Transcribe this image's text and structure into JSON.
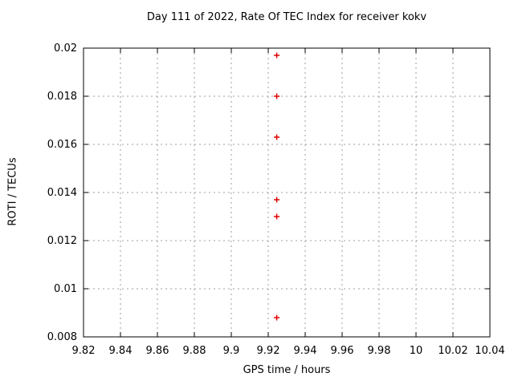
{
  "chart_data": {
    "type": "scatter",
    "title": "Day 111 of 2022, Rate Of TEC Index for receiver kokv",
    "xlabel": "GPS time / hours",
    "ylabel": "ROTI / TECUs",
    "xlim": [
      9.82,
      10.04
    ],
    "ylim": [
      0.008,
      0.02
    ],
    "x_tick_values": [
      9.82,
      9.84,
      9.86,
      9.88,
      9.9,
      9.92,
      9.94,
      9.96,
      9.98,
      10,
      10.02,
      10.04
    ],
    "x_tick_labels": [
      "9.82",
      "9.84",
      "9.86",
      "9.88",
      "9.9",
      "9.92",
      "9.94",
      "9.96",
      "9.98",
      "10",
      "10.02",
      "10.04"
    ],
    "y_tick_values": [
      0.008,
      0.01,
      0.012,
      0.014,
      0.016,
      0.018,
      0.02
    ],
    "y_tick_labels": [
      "0.008",
      "0.01",
      "0.012",
      "0.014",
      "0.016",
      "0.018",
      "0.02"
    ],
    "grid": true,
    "legend_position": "none",
    "colors": {
      "marker": "#e00000",
      "grid": "#9e9e9e",
      "axis": "#000000",
      "background": "#ffffff"
    },
    "series": [
      {
        "name": "ROTI",
        "marker": "plus",
        "color": "#e00000",
        "points": [
          {
            "x": 9.9246,
            "y": 0.0197
          },
          {
            "x": 9.9246,
            "y": 0.018
          },
          {
            "x": 9.9246,
            "y": 0.0163
          },
          {
            "x": 9.9246,
            "y": 0.0137
          },
          {
            "x": 9.9246,
            "y": 0.013
          },
          {
            "x": 9.9246,
            "y": 0.0088
          }
        ]
      }
    ]
  }
}
